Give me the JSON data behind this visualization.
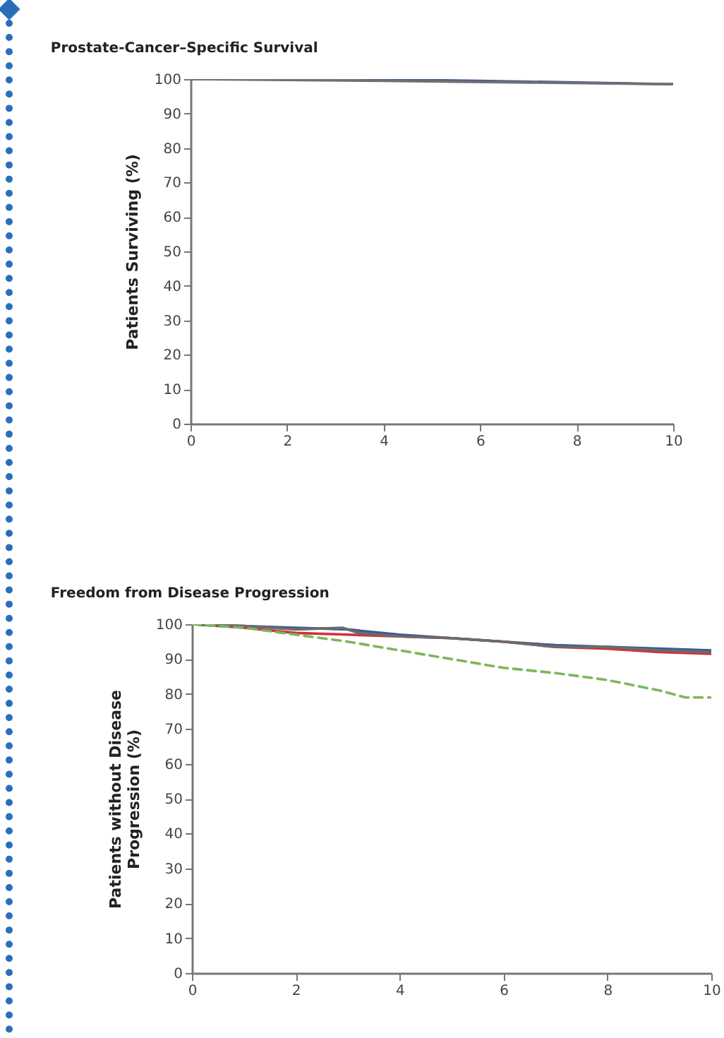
{
  "chart_data": [
    {
      "type": "line",
      "title": "Prostate-Cancer–Specific Survival",
      "ylabel": "Patients Surviving (%)",
      "xlim": [
        0,
        10
      ],
      "xticks": [
        0,
        2,
        4,
        6,
        8,
        10
      ],
      "ylim": [
        0,
        100
      ],
      "yticks": [
        0,
        10,
        20,
        30,
        40,
        50,
        60,
        70,
        80,
        90,
        100
      ],
      "grid": false,
      "marker": "none",
      "series": [
        {
          "color": "#3d5a99",
          "line_style": "solid",
          "x": [
            0,
            3,
            6,
            8,
            10
          ],
          "values": [
            100,
            100,
            99.5,
            99,
            98.5
          ]
        },
        {
          "color": "#707070",
          "line_style": "solid",
          "x": [
            0,
            4,
            7,
            10
          ],
          "values": [
            100,
            99.5,
            99,
            98.5
          ]
        }
      ]
    },
    {
      "type": "line",
      "title": "Freedom from Disease Progression",
      "ylabel": "Patients without Disease Progression (%)",
      "xlim": [
        0,
        10
      ],
      "xticks": [
        0,
        2,
        4,
        6,
        8,
        10
      ],
      "ylim": [
        0,
        100
      ],
      "yticks": [
        0,
        10,
        20,
        30,
        40,
        50,
        60,
        70,
        80,
        90,
        100
      ],
      "grid": false,
      "marker": "none",
      "series": [
        {
          "color": "#3d5a99",
          "line_style": "solid",
          "x": [
            0,
            1,
            2,
            3,
            4,
            5,
            6,
            7,
            8,
            9,
            10
          ],
          "values": [
            100,
            99.5,
            99,
            98.5,
            97,
            96,
            95,
            94,
            93.5,
            93,
            92.5
          ]
        },
        {
          "color": "#d0323c",
          "line_style": "solid",
          "x": [
            0,
            1,
            2,
            3,
            4,
            5,
            6,
            7,
            8,
            9,
            10
          ],
          "values": [
            100,
            99,
            97.5,
            97,
            96.5,
            96,
            95,
            93.5,
            93,
            92,
            91.5
          ]
        },
        {
          "color": "#6b6b6b",
          "line_style": "solid",
          "x": [
            0,
            1,
            2,
            2.9,
            3.2,
            4,
            5,
            6,
            7,
            8,
            9,
            10
          ],
          "values": [
            100,
            99.5,
            98.5,
            99,
            97.5,
            96.5,
            96,
            95,
            93.5,
            93.5,
            92.5,
            92
          ]
        },
        {
          "color": "#7ab85a",
          "line_style": "dashed",
          "x": [
            0,
            1,
            2,
            3,
            4,
            5,
            6,
            7,
            8,
            9,
            9.5,
            10
          ],
          "values": [
            100,
            99,
            97,
            95,
            92.5,
            90,
            87.5,
            86,
            84,
            81,
            79,
            79
          ]
        }
      ]
    }
  ]
}
